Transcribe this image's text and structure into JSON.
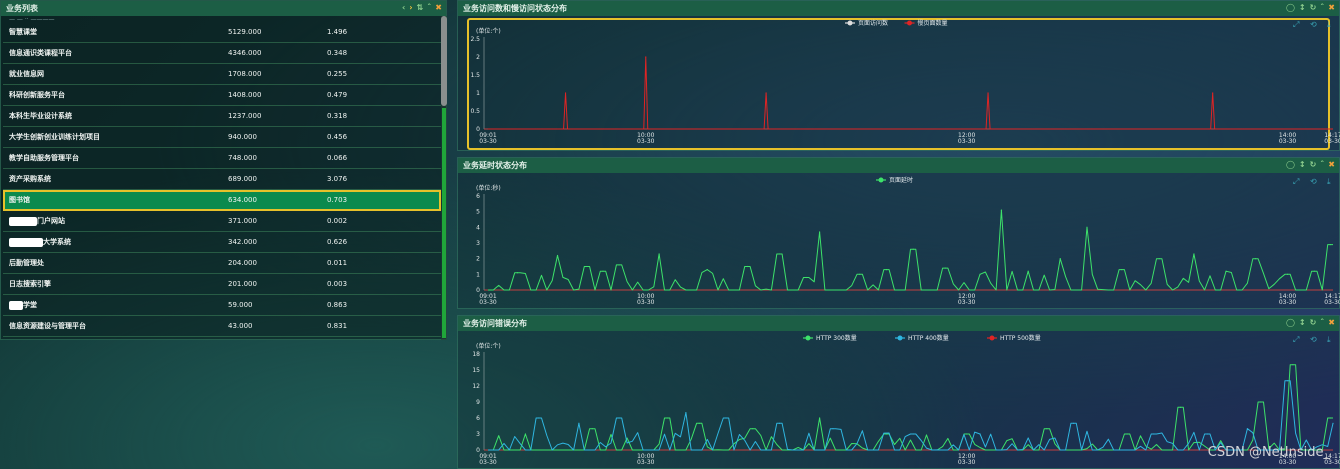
{
  "list_panel": {
    "title": "业务列表",
    "top_fragment": "— — ·· ————",
    "rows": [
      {
        "name": "智慧课堂",
        "v1": "5129.000",
        "v2": "1.496",
        "selected": false,
        "redact": 0
      },
      {
        "name": "信息通识类课程平台",
        "v1": "4346.000",
        "v2": "0.348",
        "selected": false,
        "redact": 0
      },
      {
        "name": "就业信息网",
        "v1": "1708.000",
        "v2": "0.255",
        "selected": false,
        "redact": 0
      },
      {
        "name": "科研创新服务平台",
        "v1": "1408.000",
        "v2": "0.479",
        "selected": false,
        "redact": 0
      },
      {
        "name": "本科生毕业设计系统",
        "v1": "1237.000",
        "v2": "0.318",
        "selected": false,
        "redact": 0
      },
      {
        "name": "大学生创新创业训练计划项目",
        "v1": "940.000",
        "v2": "0.456",
        "selected": false,
        "redact": 0
      },
      {
        "name": "教学自助服务管理平台",
        "v1": "748.000",
        "v2": "0.066",
        "selected": false,
        "redact": 0
      },
      {
        "name": "资产采购系统",
        "v1": "689.000",
        "v2": "3.076",
        "selected": false,
        "redact": 0
      },
      {
        "name": "图书馆",
        "v1": "634.000",
        "v2": "0.703",
        "selected": true,
        "redact": 0
      },
      {
        "name": "门户网站",
        "v1": "371.000",
        "v2": "0.002",
        "selected": false,
        "redact": 28
      },
      {
        "name": "大学系统",
        "v1": "342.000",
        "v2": "0.626",
        "selected": false,
        "redact": 34
      },
      {
        "name": "后勤管理处",
        "v1": "204.000",
        "v2": "0.011",
        "selected": false,
        "redact": 0
      },
      {
        "name": "日志搜索引擎",
        "v1": "201.000",
        "v2": "0.003",
        "selected": false,
        "redact": 0
      },
      {
        "name": "学堂",
        "v1": "59.000",
        "v2": "0.863",
        "selected": false,
        "redact": 14
      },
      {
        "name": "信息资源建设与管理平台",
        "v1": "43.000",
        "v2": "0.831",
        "selected": false,
        "redact": 0
      }
    ]
  },
  "icons": {
    "prev": "chevron-left-icon",
    "next": "chevron-right-icon",
    "sort": "sort-icon",
    "collapse": "chevron-up-icon",
    "close": "close-icon",
    "timer": "clock-icon",
    "move": "move-icon",
    "refresh": "refresh-icon",
    "zoom": "zoom-icon",
    "restore": "restore-icon",
    "download": "download-icon"
  },
  "colors": {
    "header": "#1c5e45",
    "selected_row": "#0b8a4e",
    "highlight": "#e6c12a",
    "green_series": "#3de26a",
    "blue_series": "#2fb6e0",
    "red_series": "#e02424",
    "white_series": "#dddddd"
  },
  "chart_data": [
    {
      "type": "line",
      "title": "业务访问数和慢访问状态分布",
      "unit": "(单位:个)",
      "ylim": [
        0,
        2.5
      ],
      "yticks": [
        "0",
        "0.5",
        "1",
        "1.5",
        "2",
        "2.5"
      ],
      "x_ticks": [
        {
          "time": "09:01",
          "date": "03-30"
        },
        {
          "time": "10:00",
          "date": "03-30"
        },
        {
          "time": "12:00",
          "date": "03-30"
        },
        {
          "time": "14:00",
          "date": "03-30"
        },
        {
          "time": "14:17",
          "date": "03-30"
        }
      ],
      "legend": [
        "页面访问数",
        "慢页面数量"
      ],
      "series": [
        {
          "name": "页面访问数",
          "color": "#dddddd",
          "points": []
        },
        {
          "name": "慢页面数量",
          "color": "#e02424",
          "points": [
            [
              "09:30",
              1
            ],
            [
              "10:00",
              2
            ],
            [
              "10:45",
              1
            ],
            [
              "12:08",
              1
            ],
            [
              "13:32",
              1
            ]
          ]
        }
      ],
      "legend_position": "top-center",
      "grid": false
    },
    {
      "type": "line",
      "title": "业务延时状态分布",
      "unit": "(单位:秒)",
      "ylim": [
        0,
        6
      ],
      "yticks": [
        "0",
        "1",
        "2",
        "3",
        "4",
        "5",
        "6"
      ],
      "x_ticks": [
        {
          "time": "09:01",
          "date": "03-30"
        },
        {
          "time": "10:00",
          "date": "03-30"
        },
        {
          "time": "12:00",
          "date": "03-30"
        },
        {
          "time": "14:00",
          "date": "03-30"
        },
        {
          "time": "14:17",
          "date": "03-30"
        }
      ],
      "legend": [
        "页面延时"
      ],
      "series": [
        {
          "name": "页面延时",
          "color": "#3de26a",
          "points": [
            [
              "09:12",
              1.1
            ],
            [
              "09:27",
              2.2
            ],
            [
              "09:38",
              1.5
            ],
            [
              "09:44",
              1.2
            ],
            [
              "09:50",
              1.6
            ],
            [
              "10:05",
              2.3
            ],
            [
              "10:23",
              1.3
            ],
            [
              "10:38",
              1.5
            ],
            [
              "10:50",
              2.3
            ],
            [
              "11:00",
              0.8
            ],
            [
              "11:05",
              3.7
            ],
            [
              "11:20",
              1.0
            ],
            [
              "11:30",
              1.3
            ],
            [
              "11:40",
              2.6
            ],
            [
              "11:52",
              1.4
            ],
            [
              "12:05",
              1.0
            ],
            [
              "12:13",
              5.1
            ],
            [
              "12:23",
              1.2
            ],
            [
              "12:35",
              2.0
            ],
            [
              "12:45",
              4.0
            ],
            [
              "12:58",
              1.3
            ],
            [
              "13:12",
              2.0
            ],
            [
              "13:25",
              2.3
            ],
            [
              "13:37",
              1.2
            ],
            [
              "13:48",
              2.0
            ],
            [
              "14:00",
              1.0
            ],
            [
              "14:10",
              1.2
            ],
            [
              "14:16",
              2.9
            ]
          ]
        }
      ],
      "legend_position": "top-center",
      "grid": false
    },
    {
      "type": "line",
      "title": "业务访问错误分布",
      "unit": "(单位:个)",
      "ylim": [
        0,
        18
      ],
      "yticks": [
        "0",
        "3",
        "6",
        "9",
        "12",
        "15",
        "18"
      ],
      "x_ticks": [
        {
          "time": "09:01",
          "date": "03-30"
        },
        {
          "time": "10:00",
          "date": "03-30"
        },
        {
          "time": "12:00",
          "date": "03-30"
        },
        {
          "time": "14:00",
          "date": "03-30"
        },
        {
          "time": "14:17",
          "date": "03-30"
        }
      ],
      "legend": [
        "HTTP 300数量",
        "HTTP 400数量",
        "HTTP 500数量"
      ],
      "series": [
        {
          "name": "HTTP 300数量",
          "color": "#3de26a",
          "points": [
            [
              "09:15",
              3
            ],
            [
              "09:40",
              4
            ],
            [
              "10:08",
              6
            ],
            [
              "10:20",
              5
            ],
            [
              "10:40",
              4
            ],
            [
              "11:05",
              6
            ],
            [
              "11:30",
              3
            ],
            [
              "12:00",
              3
            ],
            [
              "12:30",
              4
            ],
            [
              "13:00",
              3
            ],
            [
              "13:20",
              8
            ],
            [
              "13:50",
              9
            ],
            [
              "14:02",
              16
            ],
            [
              "14:16",
              6
            ]
          ]
        },
        {
          "name": "HTTP 400数量",
          "color": "#2fb6e0",
          "points": [
            [
              "09:20",
              6
            ],
            [
              "09:35",
              5
            ],
            [
              "09:50",
              6
            ],
            [
              "10:15",
              7
            ],
            [
              "10:30",
              6
            ],
            [
              "10:50",
              5
            ],
            [
              "11:10",
              4
            ],
            [
              "11:40",
              3
            ],
            [
              "12:05",
              3
            ],
            [
              "12:40",
              5
            ],
            [
              "13:10",
              3
            ],
            [
              "13:30",
              3
            ],
            [
              "13:45",
              4
            ],
            [
              "14:00",
              13
            ],
            [
              "14:17",
              5
            ]
          ]
        },
        {
          "name": "HTTP 500数量",
          "color": "#e02424",
          "points": []
        }
      ],
      "legend_position": "top-center",
      "grid": false
    }
  ],
  "watermark": "CSDN @NetInside_"
}
